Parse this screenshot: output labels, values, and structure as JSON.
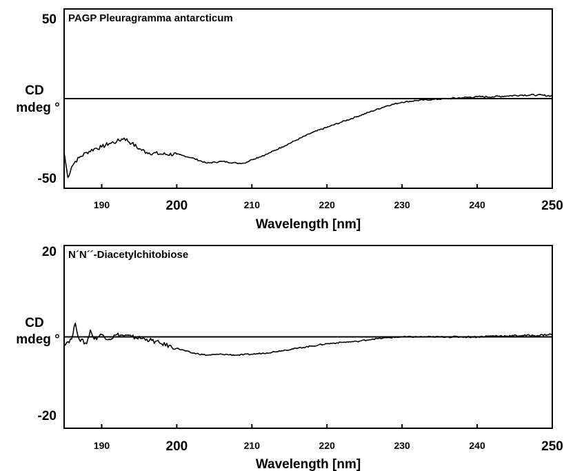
{
  "chart_data": [
    {
      "type": "line",
      "title": "PAGP Pleuragramma antarcticum",
      "ylabel_line1": "CD",
      "ylabel_line2": "mdeg °",
      "xlabel": "Wavelength [nm]",
      "xlim": [
        185,
        250
      ],
      "ylim": [
        -50,
        50
      ],
      "y_ticks": [
        "50",
        "-50"
      ],
      "x_ticks": [
        {
          "value": 190,
          "label": "190",
          "size": "small"
        },
        {
          "value": 200,
          "label": "200",
          "size": "large"
        },
        {
          "value": 210,
          "label": "210",
          "size": "small"
        },
        {
          "value": 220,
          "label": "220",
          "size": "small"
        },
        {
          "value": 230,
          "label": "230",
          "size": "small"
        },
        {
          "value": 240,
          "label": "240",
          "size": "small"
        },
        {
          "value": 250,
          "label": "250",
          "size": "large"
        }
      ],
      "baseline": 0,
      "series": [
        {
          "x": [
            185,
            185.5,
            186,
            186.5,
            187,
            188,
            189,
            190,
            191,
            192,
            193,
            194,
            195,
            196,
            198,
            200,
            202,
            204,
            206,
            208,
            209,
            210,
            212,
            214,
            216,
            218,
            220,
            222,
            224,
            226,
            228,
            230,
            232,
            234,
            236,
            238,
            240,
            242,
            244,
            246,
            248,
            250
          ],
          "y": [
            -30,
            -44,
            -38,
            -35,
            -33,
            -30,
            -28,
            -27,
            -25,
            -24,
            -22,
            -25,
            -28,
            -30,
            -31,
            -31,
            -33,
            -36,
            -35,
            -36,
            -36,
            -34,
            -31,
            -27,
            -23,
            -19,
            -16,
            -13,
            -10,
            -7,
            -4,
            -2,
            -1,
            -0.5,
            0,
            0.5,
            1,
            1,
            1.5,
            2,
            2,
            1.5
          ]
        }
      ]
    },
    {
      "type": "line",
      "title": "N´N´´-Diacetylchitobiose",
      "ylabel_line1": "CD",
      "ylabel_line2": "mdeg °",
      "xlabel": "Wavelength [nm]",
      "xlim": [
        185,
        250
      ],
      "ylim": [
        -20,
        20
      ],
      "y_ticks": [
        "20",
        "-20"
      ],
      "x_ticks": [
        {
          "value": 190,
          "label": "190",
          "size": "small"
        },
        {
          "value": 200,
          "label": "200",
          "size": "large"
        },
        {
          "value": 210,
          "label": "210",
          "size": "small"
        },
        {
          "value": 220,
          "label": "220",
          "size": "small"
        },
        {
          "value": 230,
          "label": "230",
          "size": "small"
        },
        {
          "value": 240,
          "label": "240",
          "size": "small"
        },
        {
          "value": 250,
          "label": "250",
          "size": "large"
        }
      ],
      "baseline": 0,
      "series": [
        {
          "x": [
            185,
            186,
            186.5,
            187,
            188,
            188.5,
            189,
            190,
            191,
            192,
            194,
            196,
            198,
            200,
            202,
            204,
            206,
            208,
            210,
            212,
            214,
            216,
            218,
            220,
            222,
            224,
            226,
            228,
            230,
            232,
            234,
            236,
            238,
            240,
            242,
            244,
            246,
            248,
            250
          ],
          "y": [
            -1.5,
            -0.5,
            3,
            -0.5,
            -1.5,
            1.5,
            -0.5,
            0.5,
            -0.5,
            0.5,
            0,
            -0.5,
            -1.5,
            -2.5,
            -3.5,
            -4,
            -3.8,
            -4,
            -3.8,
            -3.5,
            -3,
            -2.5,
            -2,
            -1.5,
            -1.2,
            -1,
            -0.5,
            -0.2,
            0,
            0,
            0,
            0,
            0,
            0,
            0.2,
            0.2,
            0.3,
            0.3,
            0.6
          ]
        }
      ]
    }
  ]
}
